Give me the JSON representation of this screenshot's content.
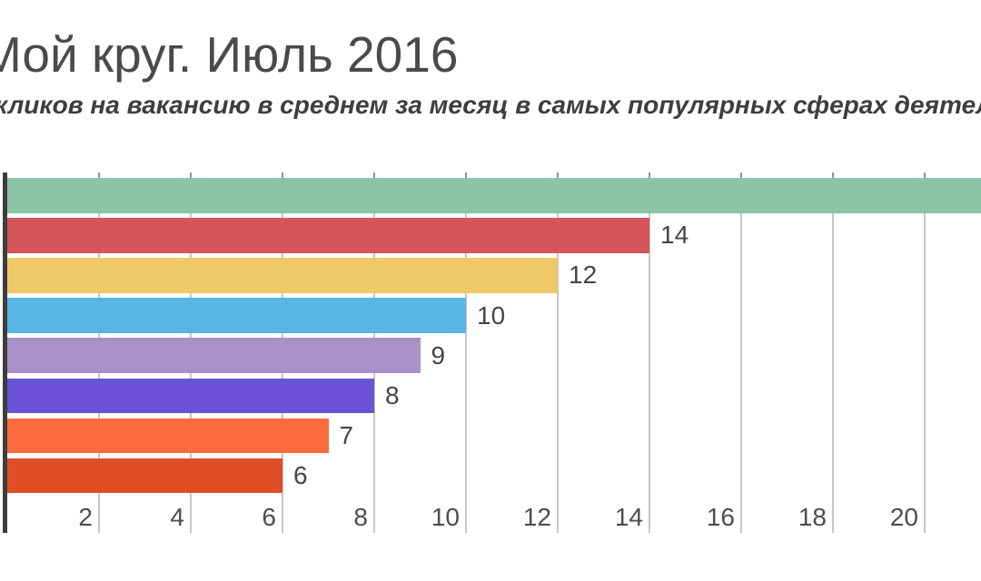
{
  "header": {
    "title": "Мой круг. Июль 2016",
    "subtitle_visible": "кликов на вакансию в среднем за месяц в самых популярных сферах деятель"
  },
  "chart_data": {
    "type": "bar",
    "orientation": "horizontal",
    "title": "Мой круг. Июль 2016",
    "subtitle_visible": "кликов на вакансию в среднем за месяц в самых популярных сферах деятель",
    "categories": null,
    "bars": [
      {
        "value": null,
        "label": null,
        "clipped": true,
        "color": "#8dc3a6"
      },
      {
        "value": 14,
        "label": "14",
        "clipped": false,
        "color": "#d5555a"
      },
      {
        "value": 12,
        "label": "12",
        "clipped": false,
        "color": "#edc968"
      },
      {
        "value": 10,
        "label": "10",
        "clipped": false,
        "color": "#58b5e6"
      },
      {
        "value": 9,
        "label": "9",
        "clipped": false,
        "color": "#aa90c8"
      },
      {
        "value": 8,
        "label": "8",
        "clipped": false,
        "color": "#6c52d6"
      },
      {
        "value": 7,
        "label": "7",
        "clipped": false,
        "color": "#fb6b3d"
      },
      {
        "value": 6,
        "label": "6",
        "clipped": false,
        "color": "#df4e26"
      }
    ],
    "x_ticks": [
      2,
      4,
      6,
      8,
      10,
      12,
      14,
      16,
      18,
      20
    ],
    "xlim": [
      0,
      21.2
    ],
    "grid": true,
    "legend": false,
    "axis_colors": {
      "gridline": "#c6c6c6",
      "tick_mark": "#939393",
      "axis_line": "#3d3d3d",
      "tick_label": "#4d4d4d",
      "value_label": "#454545"
    }
  }
}
